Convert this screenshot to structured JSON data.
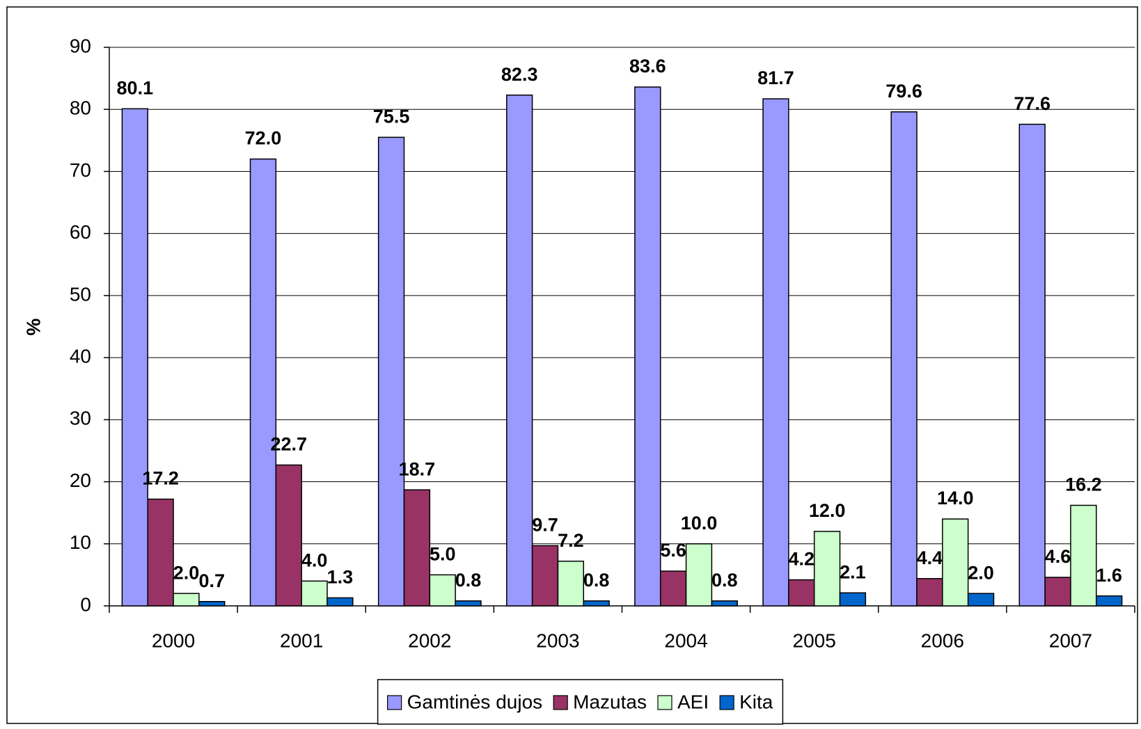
{
  "chart_data": {
    "type": "bar",
    "y_label": "%",
    "categories": [
      "2000",
      "2001",
      "2002",
      "2003",
      "2004",
      "2005",
      "2006",
      "2007"
    ],
    "series": [
      {
        "name": "Gamtinės dujos",
        "color": "#9999ff",
        "values": [
          80.1,
          72,
          75.5,
          82.3,
          83.6,
          81.7,
          79.6,
          77.6
        ],
        "value_labels": [
          "80.1",
          "72.0",
          "75.5",
          "82.3",
          "83.6",
          "81.7",
          "79.6",
          "77.6"
        ]
      },
      {
        "name": "Mazutas",
        "color": "#993366",
        "values": [
          17.2,
          22.7,
          18.7,
          9.7,
          5.6,
          4.2,
          4.4,
          4.6
        ],
        "value_labels": [
          "17.2",
          "22.7",
          "18.7",
          "9.7",
          "5.6",
          "4.2",
          "4.4",
          "4.6"
        ]
      },
      {
        "name": "AEI",
        "color": "#ccffcc",
        "values": [
          2,
          4,
          5,
          7.2,
          10,
          12,
          14,
          16.2
        ],
        "value_labels": [
          "2.0",
          "4.0",
          "5.0",
          "7.2",
          "10.0",
          "12.0",
          "14.0",
          "16.2"
        ]
      },
      {
        "name": "Kita",
        "color": "#0066cc",
        "values": [
          0.7,
          1.3,
          0.8,
          0.8,
          0.8,
          2.1,
          2,
          1.6
        ],
        "value_labels": [
          "0.7",
          "1.3",
          "0.8",
          "0.8",
          "0.8",
          "2.1",
          "2.0",
          "1.6"
        ]
      }
    ],
    "ylim": [
      0,
      90
    ],
    "yticks": [
      0,
      10,
      20,
      30,
      40,
      50,
      60,
      70,
      80,
      90
    ],
    "grid": true,
    "legend": "bottom"
  }
}
